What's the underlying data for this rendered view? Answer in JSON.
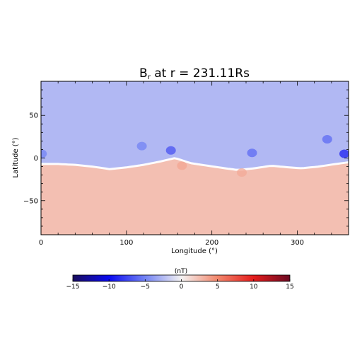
{
  "chart_data": {
    "type": "heatmap",
    "title": {
      "main": "B",
      "subscript": "r",
      "rest": " at r = 231.11Rs"
    },
    "xlabel": "Longitude (°)",
    "ylabel": "Latitude (°)",
    "xlim": [
      0,
      360
    ],
    "ylim": [
      -90,
      90
    ],
    "x_ticks": [
      {
        "value": 0,
        "label": "0"
      },
      {
        "value": 100,
        "label": "100"
      },
      {
        "value": 200,
        "label": "200"
      },
      {
        "value": 300,
        "label": "300"
      }
    ],
    "y_ticks": [
      {
        "value": 50,
        "label": "50"
      },
      {
        "value": 0,
        "label": "0"
      },
      {
        "value": -50,
        "label": "−50"
      }
    ],
    "field": {
      "north_value": -2.6,
      "south_value": 2.4,
      "neutral_line": [
        {
          "lon": 0,
          "lat": -7
        },
        {
          "lon": 20,
          "lat": -7
        },
        {
          "lon": 40,
          "lat": -8
        },
        {
          "lon": 60,
          "lat": -10
        },
        {
          "lon": 80,
          "lat": -13
        },
        {
          "lon": 100,
          "lat": -11
        },
        {
          "lon": 120,
          "lat": -8
        },
        {
          "lon": 140,
          "lat": -4
        },
        {
          "lon": 157,
          "lat": 0
        },
        {
          "lon": 175,
          "lat": -6
        },
        {
          "lon": 195,
          "lat": -9
        },
        {
          "lon": 215,
          "lat": -12
        },
        {
          "lon": 230,
          "lat": -14
        },
        {
          "lon": 250,
          "lat": -12
        },
        {
          "lon": 270,
          "lat": -9
        },
        {
          "lon": 290,
          "lat": -11
        },
        {
          "lon": 305,
          "lat": -12
        },
        {
          "lon": 325,
          "lat": -10
        },
        {
          "lon": 345,
          "lat": -7
        },
        {
          "lon": 360,
          "lat": -5
        }
      ],
      "features": [
        {
          "lon": 118,
          "lat": 14,
          "value": -5
        },
        {
          "lon": 152,
          "lat": 9,
          "value": -7
        },
        {
          "lon": 247,
          "lat": 6,
          "value": -6
        },
        {
          "lon": 335,
          "lat": 22,
          "value": -6
        },
        {
          "lon": 355,
          "lat": 5,
          "value": -9
        },
        {
          "lon": 1,
          "lat": 5,
          "value": -5
        },
        {
          "lon": 165,
          "lat": -9,
          "value": 3.6
        },
        {
          "lon": 235,
          "lat": -17,
          "value": 3.4
        }
      ]
    },
    "colorbar": {
      "label": "(nT)",
      "min": -15,
      "max": 15,
      "ticks": [
        {
          "value": -15,
          "label": "−15"
        },
        {
          "value": -10,
          "label": "−10"
        },
        {
          "value": -5,
          "label": "−5"
        },
        {
          "value": 0,
          "label": "0"
        },
        {
          "value": 5,
          "label": "5"
        },
        {
          "value": 10,
          "label": "10"
        },
        {
          "value": 15,
          "label": "15"
        }
      ],
      "colors": [
        {
          "value": -15,
          "color": "#1a0d5c"
        },
        {
          "value": -10,
          "color": "#0a0af0"
        },
        {
          "value": -5,
          "color": "#7383f4"
        },
        {
          "value": 0,
          "color": "#f4f2f2"
        },
        {
          "value": 5,
          "color": "#f2876c"
        },
        {
          "value": 10,
          "color": "#e41c1c"
        },
        {
          "value": 15,
          "color": "#6b0a22"
        }
      ]
    }
  }
}
